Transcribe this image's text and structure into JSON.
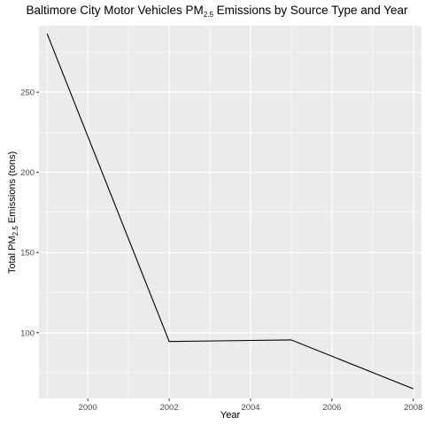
{
  "chart_data": {
    "type": "line",
    "title": {
      "prefix": "Baltimore City Motor Vehicles PM",
      "subscript": "2.5",
      "suffix": " Emissions by Source Type and Year"
    },
    "xlabel": "Year",
    "ylabel": {
      "prefix": "Total PM",
      "subscript": "2.5",
      "suffix": " Emissions (tons)"
    },
    "x": [
      1999,
      2002,
      2005,
      2008
    ],
    "y": [
      286.5,
      94.5,
      95.5,
      65
    ],
    "xlim": [
      1998.8,
      2008.2
    ],
    "ylim": [
      59,
      291.5
    ],
    "xticks": [
      2000,
      2002,
      2004,
      2006,
      2008
    ],
    "yticks": [
      100,
      150,
      200,
      250
    ],
    "grid": true,
    "colors": {
      "panel_background": "#ebebeb",
      "grid": "#ffffff",
      "line": "#000000",
      "tick_text": "#4d4d4d"
    }
  }
}
